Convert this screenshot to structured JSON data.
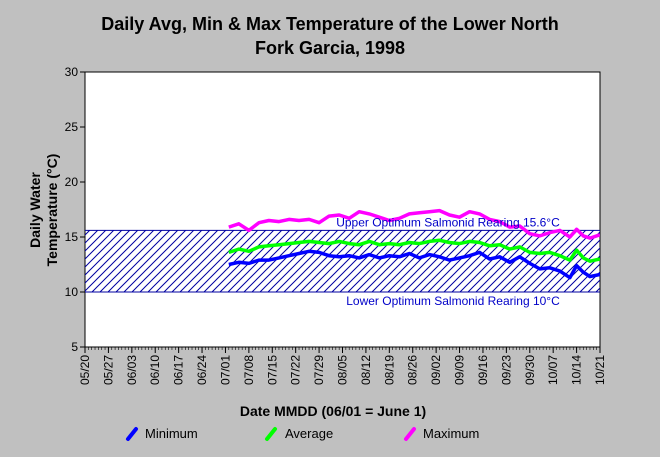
{
  "chart_data": {
    "type": "line",
    "title_line1": "Daily Avg, Min & Max Temperature of the Lower North",
    "title_line2": "Fork Garcia, 1998",
    "ylabel_line1": "Daily Water",
    "ylabel_line2": "Temperature (°C)",
    "xlabel": "Date MMDD (06/01 = June 1)",
    "ylim": [
      5,
      30
    ],
    "yticks": [
      "5",
      "10",
      "15",
      "20",
      "25",
      "30"
    ],
    "x_start": "05/20",
    "x_end": "10/21",
    "x_tick_labels": [
      "05/20",
      "05/27",
      "06/03",
      "06/10",
      "06/17",
      "06/24",
      "07/01",
      "07/08",
      "07/15",
      "07/22",
      "07/29",
      "08/05",
      "08/12",
      "08/19",
      "08/26",
      "09/02",
      "09/09",
      "09/16",
      "09/23",
      "09/30",
      "10/07",
      "10/14",
      "10/21"
    ],
    "grid": false,
    "legend_position": "bottom",
    "bands": [
      {
        "lower": 10,
        "upper": 15.6,
        "color": "#0000a0",
        "upper_label": "Upper Optimum Salmonid Rearing 15.6°C",
        "lower_label": "Lower Optimum Salmonid Rearing 10°C"
      }
    ],
    "series": [
      {
        "name": "Minimum",
        "color": "#0000ff",
        "points": [
          [
            "07/02",
            12.5
          ],
          [
            "07/05",
            12.7
          ],
          [
            "07/08",
            12.6
          ],
          [
            "07/11",
            12.9
          ],
          [
            "07/14",
            12.9
          ],
          [
            "07/17",
            13.1
          ],
          [
            "07/20",
            13.3
          ],
          [
            "07/23",
            13.5
          ],
          [
            "07/26",
            13.7
          ],
          [
            "07/29",
            13.6
          ],
          [
            "08/01",
            13.3
          ],
          [
            "08/04",
            13.2
          ],
          [
            "08/07",
            13.3
          ],
          [
            "08/10",
            13.1
          ],
          [
            "08/13",
            13.4
          ],
          [
            "08/16",
            13.1
          ],
          [
            "08/19",
            13.3
          ],
          [
            "08/22",
            13.2
          ],
          [
            "08/25",
            13.5
          ],
          [
            "08/28",
            13.1
          ],
          [
            "08/31",
            13.4
          ],
          [
            "09/03",
            13.2
          ],
          [
            "09/06",
            12.9
          ],
          [
            "09/09",
            13.1
          ],
          [
            "09/12",
            13.3
          ],
          [
            "09/15",
            13.6
          ],
          [
            "09/18",
            13.0
          ],
          [
            "09/21",
            13.2
          ],
          [
            "09/24",
            12.7
          ],
          [
            "09/27",
            13.2
          ],
          [
            "09/30",
            12.6
          ],
          [
            "10/03",
            12.1
          ],
          [
            "10/06",
            12.2
          ],
          [
            "10/09",
            11.9
          ],
          [
            "10/12",
            11.3
          ],
          [
            "10/14",
            12.4
          ],
          [
            "10/16",
            11.8
          ],
          [
            "10/18",
            11.4
          ],
          [
            "10/21",
            11.6
          ]
        ]
      },
      {
        "name": "Average",
        "color": "#00ff00",
        "points": [
          [
            "07/02",
            13.6
          ],
          [
            "07/05",
            13.9
          ],
          [
            "07/08",
            13.7
          ],
          [
            "07/11",
            14.1
          ],
          [
            "07/14",
            14.2
          ],
          [
            "07/17",
            14.3
          ],
          [
            "07/20",
            14.4
          ],
          [
            "07/23",
            14.5
          ],
          [
            "07/26",
            14.6
          ],
          [
            "07/29",
            14.5
          ],
          [
            "08/01",
            14.4
          ],
          [
            "08/04",
            14.6
          ],
          [
            "08/07",
            14.4
          ],
          [
            "08/10",
            14.3
          ],
          [
            "08/13",
            14.6
          ],
          [
            "08/16",
            14.3
          ],
          [
            "08/19",
            14.4
          ],
          [
            "08/22",
            14.3
          ],
          [
            "08/25",
            14.5
          ],
          [
            "08/28",
            14.4
          ],
          [
            "08/31",
            14.6
          ],
          [
            "09/03",
            14.7
          ],
          [
            "09/06",
            14.5
          ],
          [
            "09/09",
            14.4
          ],
          [
            "09/12",
            14.6
          ],
          [
            "09/15",
            14.5
          ],
          [
            "09/18",
            14.2
          ],
          [
            "09/21",
            14.3
          ],
          [
            "09/24",
            13.9
          ],
          [
            "09/27",
            14.1
          ],
          [
            "09/30",
            13.6
          ],
          [
            "10/03",
            13.5
          ],
          [
            "10/06",
            13.6
          ],
          [
            "10/09",
            13.3
          ],
          [
            "10/12",
            12.9
          ],
          [
            "10/14",
            13.8
          ],
          [
            "10/16",
            13.1
          ],
          [
            "10/18",
            12.8
          ],
          [
            "10/21",
            13.0
          ]
        ]
      },
      {
        "name": "Maximum",
        "color": "#ff00ff",
        "points": [
          [
            "07/02",
            15.9
          ],
          [
            "07/05",
            16.2
          ],
          [
            "07/08",
            15.6
          ],
          [
            "07/11",
            16.3
          ],
          [
            "07/14",
            16.5
          ],
          [
            "07/17",
            16.4
          ],
          [
            "07/20",
            16.6
          ],
          [
            "07/23",
            16.5
          ],
          [
            "07/26",
            16.6
          ],
          [
            "07/29",
            16.3
          ],
          [
            "08/01",
            16.9
          ],
          [
            "08/04",
            17.0
          ],
          [
            "08/07",
            16.7
          ],
          [
            "08/10",
            17.3
          ],
          [
            "08/13",
            17.1
          ],
          [
            "08/16",
            16.8
          ],
          [
            "08/19",
            16.5
          ],
          [
            "08/22",
            16.7
          ],
          [
            "08/25",
            17.1
          ],
          [
            "08/28",
            17.2
          ],
          [
            "08/31",
            17.3
          ],
          [
            "09/03",
            17.4
          ],
          [
            "09/06",
            17.0
          ],
          [
            "09/09",
            16.8
          ],
          [
            "09/12",
            17.3
          ],
          [
            "09/15",
            17.1
          ],
          [
            "09/18",
            16.6
          ],
          [
            "09/21",
            16.4
          ],
          [
            "09/24",
            15.9
          ],
          [
            "09/27",
            16.0
          ],
          [
            "09/30",
            15.3
          ],
          [
            "10/03",
            15.1
          ],
          [
            "10/06",
            15.4
          ],
          [
            "10/09",
            15.6
          ],
          [
            "10/12",
            15.0
          ],
          [
            "10/14",
            15.7
          ],
          [
            "10/16",
            15.1
          ],
          [
            "10/18",
            14.9
          ],
          [
            "10/21",
            15.2
          ]
        ]
      }
    ]
  }
}
